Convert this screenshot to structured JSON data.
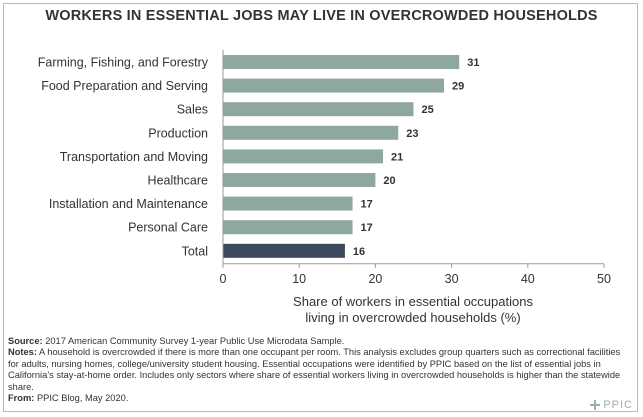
{
  "colors": {
    "bar": "#8fa89e",
    "highlight": "#3d4a5c",
    "text": "#333333",
    "axis": "#9a9a9a",
    "grid": "#e3e3e3"
  },
  "chart_data": {
    "type": "bar",
    "orientation": "horizontal",
    "title": "WORKERS IN ESSENTIAL JOBS MAY LIVE IN OVERCROWDED HOUSEHOLDS",
    "categories": [
      "Farming, Fishing, and Forestry",
      "Food Preparation and Serving",
      "Sales",
      "Production",
      "Transportation and Moving",
      "Healthcare",
      "Installation and Maintenance",
      "Personal Care",
      "Total"
    ],
    "values": [
      31,
      29,
      25,
      23,
      21,
      20,
      17,
      17,
      16
    ],
    "highlight_category": "Total",
    "xlim": [
      0,
      50
    ],
    "xticks": [
      0,
      10,
      20,
      30,
      40,
      50
    ],
    "xlabel_lines": [
      "Share of workers in essential occupations",
      "living in overcrowded households (%)"
    ],
    "grid": false,
    "data_labels": true
  },
  "footer": {
    "source_label": "Source:",
    "source_text": "2017 American Community Survey 1-year Public Use Microdata Sample.",
    "notes_label": "Notes:",
    "notes_text": "A household is overcrowded if there is more than one occupant per room. This analysis excludes group quarters such as correctional facilities for adults, nursing homes, college/university student housing. Essential occupations were identified by PPIC based on the list of essential jobs in California’s stay-at-home order. Includes only sectors where share of essential workers living in overcrowded households is higher than the statewide share.",
    "from_label": "From:",
    "from_text": "PPIC Blog, May 2020."
  },
  "logo": {
    "text": "PPIC"
  }
}
